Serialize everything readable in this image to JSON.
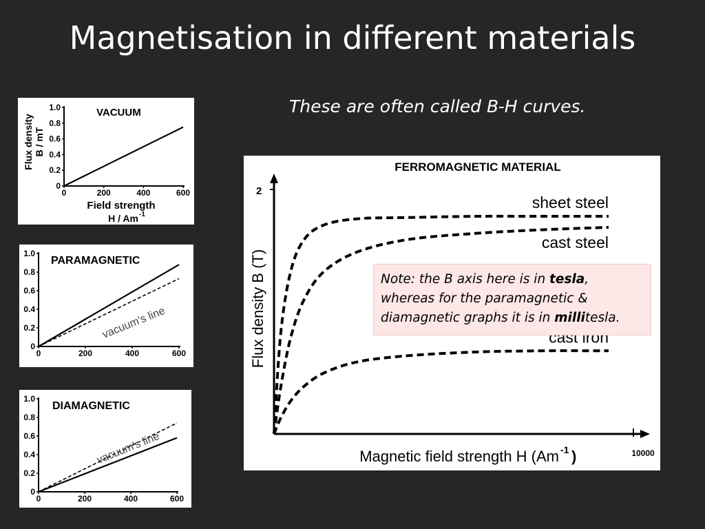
{
  "slide": {
    "title": "Magnetisation in different materials",
    "subtitle": "These are often called B-H curves."
  },
  "note": {
    "part1": "Note: the B axis here is in ",
    "part2": "tesla",
    "part3": ", whereas for the paramagnetic & diamagnetic graphs it is in ",
    "part4": "milli",
    "part5": "tesla."
  },
  "chart_data": [
    {
      "type": "line",
      "title": "VACUUM",
      "ylabel_line1": "Flux density",
      "ylabel_line2": "B / mT",
      "xlabel_line1": "Field strength",
      "xlabel_line2": "H / Am",
      "xlabel_sup": "-1",
      "xlim": [
        0,
        600
      ],
      "ylim": [
        0,
        1.0
      ],
      "x_ticks": [
        "0",
        "200",
        "400",
        "600"
      ],
      "y_ticks": [
        "0",
        "0.2",
        "0.4",
        "0.6",
        "0.8",
        "1.0"
      ],
      "series": [
        {
          "style": "solid",
          "x": [
            0,
            600
          ],
          "y": [
            0,
            0.75
          ]
        }
      ]
    },
    {
      "type": "line",
      "title": "PARAMAGNETIC",
      "xlim": [
        0,
        600
      ],
      "ylim": [
        0,
        1.0
      ],
      "x_ticks": [
        "0",
        "200",
        "400",
        "600"
      ],
      "y_ticks": [
        "0",
        "0.2",
        "0.4",
        "0.6",
        "0.8",
        "1.0"
      ],
      "annotation": "vacuum's line",
      "series": [
        {
          "style": "solid",
          "x": [
            0,
            600
          ],
          "y": [
            0,
            0.88
          ]
        },
        {
          "name": "vacuum's line",
          "style": "dashed",
          "x": [
            0,
            600
          ],
          "y": [
            0,
            0.73
          ]
        }
      ]
    },
    {
      "type": "line",
      "title": "DIAMAGNETIC",
      "xlim": [
        0,
        600
      ],
      "ylim": [
        0,
        1.0
      ],
      "x_ticks": [
        "0",
        "200",
        "400",
        "600"
      ],
      "y_ticks": [
        "0",
        "0.2",
        "0.4",
        "0.6",
        "0.8",
        "1.0"
      ],
      "annotation": "vacuum's line",
      "series": [
        {
          "style": "solid",
          "x": [
            0,
            600
          ],
          "y": [
            0,
            0.58
          ]
        },
        {
          "name": "vacuum's line",
          "style": "dashed",
          "x": [
            0,
            600
          ],
          "y": [
            0,
            0.74
          ]
        }
      ]
    },
    {
      "type": "line",
      "title": "FERROMAGNETIC MATERIAL",
      "ylabel": "Flux density B (T)",
      "xlabel": "Magnetic field strength H (Am",
      "xlabel_sup": "-1",
      "xlabel_end": ")",
      "xlim": [
        0,
        10000
      ],
      "ylim": [
        0,
        2
      ],
      "y_tick_label": "2",
      "x_tick_label": "10000",
      "series": [
        {
          "name": "sheet steel",
          "style": "dashed",
          "x": [
            0,
            200,
            500,
            900,
            1500,
            2500,
            4000,
            6000,
            8000,
            10000
          ],
          "y": [
            0,
            0.82,
            1.33,
            1.59,
            1.71,
            1.76,
            1.77,
            1.78,
            1.78,
            1.78
          ]
        },
        {
          "name": "cast steel",
          "style": "dashed",
          "x": [
            0,
            200,
            500,
            900,
            1500,
            2500,
            4000,
            6000,
            8000,
            10000
          ],
          "y": [
            0,
            0.38,
            0.79,
            1.1,
            1.33,
            1.49,
            1.59,
            1.64,
            1.67,
            1.69
          ]
        },
        {
          "name": "cast iron",
          "style": "dashed",
          "x": [
            0,
            200,
            500,
            900,
            1500,
            2500,
            4000,
            6000,
            8000,
            10000
          ],
          "y": [
            0,
            0.13,
            0.27,
            0.39,
            0.5,
            0.59,
            0.64,
            0.67,
            0.68,
            0.68
          ]
        }
      ]
    }
  ]
}
